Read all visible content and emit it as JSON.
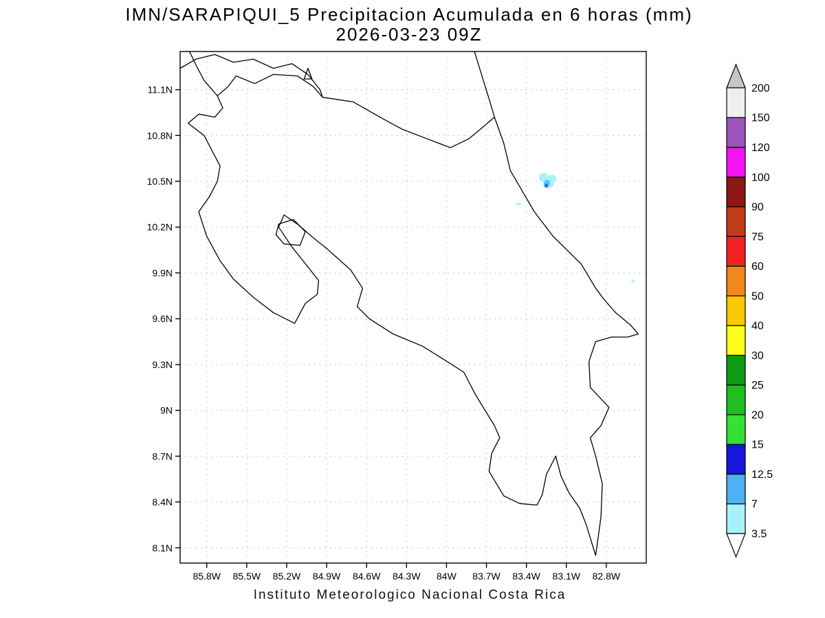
{
  "header": {
    "title_line1": "IMN/SARAPIQUI_5 Precipitacion Acumulada en 6 horas (mm)",
    "title_line2": "2026-03-23 09Z"
  },
  "footer": {
    "credit": "Instituto Meteorologico Nacional Costa Rica"
  },
  "chart_data": {
    "type": "map-precipitation-contour",
    "title": "IMN/SARAPIQUI_5 Precipitacion Acumulada en 6 horas (mm)",
    "subtitle": "2026-03-23 09Z",
    "units": "mm",
    "region": "Costa Rica",
    "grid": true,
    "lon_range": [
      -86.0,
      -82.5
    ],
    "lat_range": [
      8.0,
      11.35
    ],
    "x_ticks": [
      {
        "label": "85.8W",
        "value": -85.8
      },
      {
        "label": "85.5W",
        "value": -85.5
      },
      {
        "label": "85.2W",
        "value": -85.2
      },
      {
        "label": "84.9W",
        "value": -84.9
      },
      {
        "label": "84.6W",
        "value": -84.6
      },
      {
        "label": "84.3W",
        "value": -84.3
      },
      {
        "label": "84W",
        "value": -84.0
      },
      {
        "label": "83.7W",
        "value": -83.7
      },
      {
        "label": "83.4W",
        "value": -83.4
      },
      {
        "label": "83.1W",
        "value": -83.1
      },
      {
        "label": "82.8W",
        "value": -82.8
      }
    ],
    "y_ticks": [
      {
        "label": "8.1N",
        "value": 8.1
      },
      {
        "label": "8.4N",
        "value": 8.4
      },
      {
        "label": "8.7N",
        "value": 8.7
      },
      {
        "label": "9N",
        "value": 9.0
      },
      {
        "label": "9.3N",
        "value": 9.3
      },
      {
        "label": "9.6N",
        "value": 9.6
      },
      {
        "label": "9.9N",
        "value": 9.9
      },
      {
        "label": "10.2N",
        "value": 10.2
      },
      {
        "label": "10.5N",
        "value": 10.5
      },
      {
        "label": "10.8N",
        "value": 10.8
      },
      {
        "label": "11.1N",
        "value": 11.1
      }
    ],
    "colorbar": {
      "position": "right",
      "levels": [
        3.5,
        7,
        12.5,
        15,
        20,
        25,
        30,
        40,
        50,
        60,
        75,
        90,
        100,
        120,
        150,
        200
      ],
      "segment_colors_bottom_to_top": [
        "#a9f1fb",
        "#4fb0f2",
        "#1616dc",
        "#35e035",
        "#1fbe1f",
        "#0f9a16",
        "#ffff1e",
        "#fbc802",
        "#f2871c",
        "#f32222",
        "#bf3a18",
        "#8c1710",
        "#f513f5",
        "#9d54bc",
        "#efefef"
      ],
      "over_color": "#c6c6c6",
      "under_color": "#ffffff"
    },
    "precip_features": [
      {
        "name": "precip-cell-main",
        "approx_value_mm": "3.5-12.5",
        "blobs": [
          {
            "lon": -83.27,
            "lat": 10.525,
            "rlon": 0.035,
            "rlat": 0.03,
            "color": "#a9f1fb"
          },
          {
            "lon": -83.21,
            "lat": 10.515,
            "rlon": 0.035,
            "rlat": 0.028,
            "color": "#a9f1fb"
          },
          {
            "lon": -83.235,
            "lat": 10.48,
            "rlon": 0.04,
            "rlat": 0.025,
            "color": "#a9f1fb"
          },
          {
            "lon": -83.245,
            "lat": 10.49,
            "rlon": 0.025,
            "rlat": 0.02,
            "color": "#54c8f5"
          },
          {
            "lon": -83.25,
            "lat": 10.472,
            "rlon": 0.014,
            "rlat": 0.013,
            "color": "#1e6ef0"
          }
        ]
      },
      {
        "name": "precip-streak-small",
        "approx_value_mm": "3.5",
        "blobs": [
          {
            "lon": -83.46,
            "lat": 10.35,
            "rlon": 0.022,
            "rlat": 0.008,
            "color": "#a9f1fb"
          }
        ]
      },
      {
        "name": "precip-speck-coastal",
        "approx_value_mm": "3.5",
        "blobs": [
          {
            "lon": -82.6,
            "lat": 9.845,
            "rlon": 0.012,
            "rlat": 0.011,
            "color": "#a9f1fb"
          }
        ]
      }
    ]
  }
}
